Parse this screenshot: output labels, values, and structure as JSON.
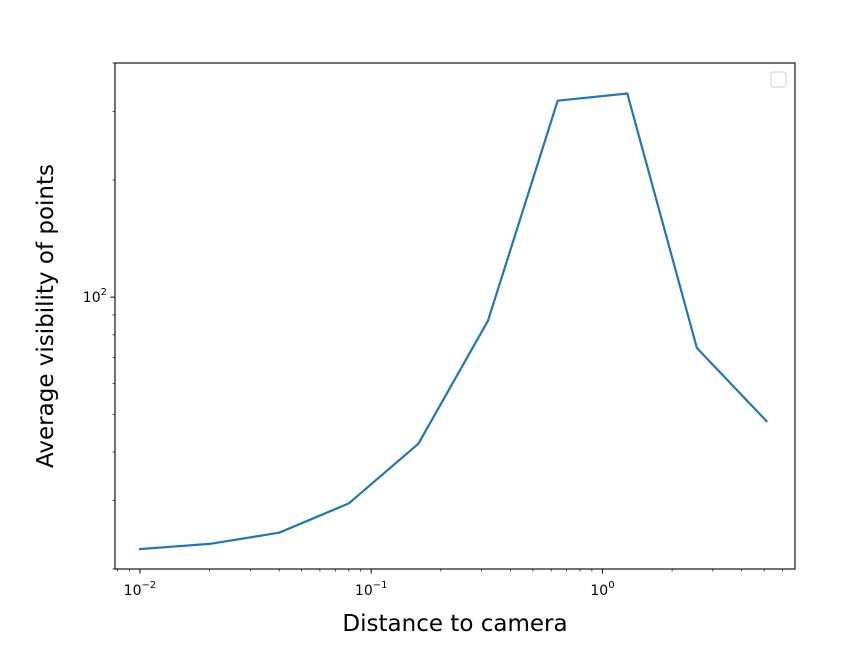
{
  "chart_data": {
    "type": "line",
    "title": "",
    "xlabel": "Distance to camera",
    "ylabel": "Average visibility of points",
    "xscale": "log",
    "yscale": "log",
    "xlim": [
      0.0078,
      6.8
    ],
    "ylim": [
      20,
      400
    ],
    "grid": false,
    "legend": {
      "location": "upper right",
      "entries": []
    },
    "line_color": "#1f77b4",
    "x": [
      0.01,
      0.02,
      0.04,
      0.08,
      0.16,
      0.32,
      0.64,
      1.28,
      2.56,
      5.12
    ],
    "y": [
      22.5,
      23.2,
      24.8,
      29.5,
      42,
      87,
      320,
      334,
      74,
      48
    ],
    "x_ticks": [
      {
        "value": 0.01,
        "base": "10",
        "exp": "−2"
      },
      {
        "value": 0.1,
        "base": "10",
        "exp": "−1"
      },
      {
        "value": 1,
        "base": "10",
        "exp": "0"
      }
    ],
    "y_ticks": [
      {
        "value": 100,
        "base": "10",
        "exp": "2"
      }
    ]
  }
}
